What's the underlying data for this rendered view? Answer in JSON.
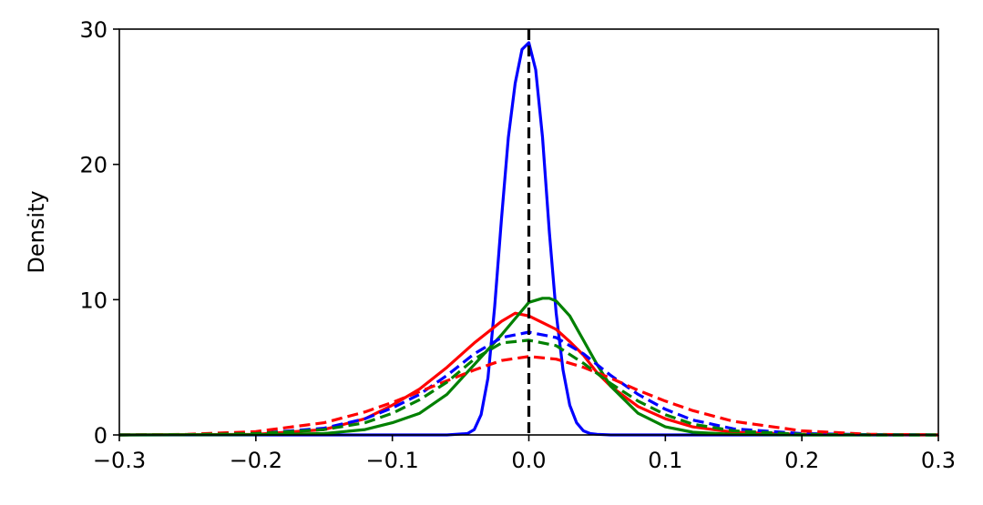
{
  "chart_data": {
    "type": "line",
    "title": "",
    "xlabel": "",
    "ylabel": "Density",
    "xlim": [
      -0.3,
      0.3
    ],
    "ylim": [
      0,
      30
    ],
    "xticks": [
      -0.3,
      -0.2,
      -0.1,
      0.0,
      0.1,
      0.2,
      0.3
    ],
    "xtick_labels": [
      "−0.3",
      "−0.2",
      "−0.1",
      "0.0",
      "0.1",
      "0.2",
      "0.3"
    ],
    "yticks": [
      0,
      10,
      20,
      30
    ],
    "ytick_labels": [
      "0",
      "10",
      "20",
      "30"
    ],
    "grid": false,
    "legend": false,
    "reference_line": {
      "x": 0.0,
      "style": "dashed",
      "color": "#000000"
    },
    "series": [
      {
        "color": "#0000ff",
        "style": "solid",
        "x": [
          -0.3,
          -0.06,
          -0.045,
          -0.04,
          -0.035,
          -0.03,
          -0.025,
          -0.02,
          -0.015,
          -0.01,
          -0.005,
          0,
          0.005,
          0.01,
          0.015,
          0.02,
          0.025,
          0.03,
          0.035,
          0.04,
          0.045,
          0.05,
          0.06,
          0.3
        ],
        "y": [
          0,
          0,
          0.1,
          0.4,
          1.5,
          4.2,
          9.5,
          16,
          22,
          26,
          28.5,
          29,
          27,
          22,
          15,
          9,
          4.8,
          2.2,
          0.9,
          0.3,
          0.1,
          0.05,
          0,
          0
        ]
      },
      {
        "color": "#ff0000",
        "style": "solid",
        "x": [
          -0.3,
          -0.2,
          -0.15,
          -0.12,
          -0.1,
          -0.08,
          -0.06,
          -0.04,
          -0.03,
          -0.02,
          -0.01,
          0,
          0.01,
          0.02,
          0.03,
          0.04,
          0.05,
          0.06,
          0.08,
          0.1,
          0.12,
          0.15,
          0.2,
          0.3
        ],
        "y": [
          0,
          0.05,
          0.4,
          1.2,
          2.2,
          3.4,
          5,
          6.8,
          7.6,
          8.4,
          9,
          8.8,
          8.3,
          7.8,
          6.9,
          5.9,
          4.6,
          3.6,
          2.1,
          1.2,
          0.6,
          0.2,
          0.05,
          0
        ]
      },
      {
        "color": "#008000",
        "style": "solid",
        "x": [
          -0.3,
          -0.2,
          -0.15,
          -0.12,
          -0.1,
          -0.08,
          -0.06,
          -0.04,
          -0.02,
          -0.01,
          0,
          0.01,
          0.015,
          0.02,
          0.03,
          0.04,
          0.05,
          0.06,
          0.08,
          0.1,
          0.12,
          0.15,
          0.2,
          0.3
        ],
        "y": [
          0,
          0.02,
          0.1,
          0.4,
          0.9,
          1.6,
          3,
          5.2,
          7.4,
          8.6,
          9.8,
          10.1,
          10.1,
          9.9,
          8.8,
          7,
          5.2,
          3.6,
          1.6,
          0.6,
          0.2,
          0.05,
          0,
          0
        ]
      },
      {
        "color": "#0000ff",
        "style": "dashed",
        "x": [
          -0.3,
          -0.25,
          -0.2,
          -0.15,
          -0.12,
          -0.1,
          -0.08,
          -0.06,
          -0.04,
          -0.02,
          0,
          0.02,
          0.04,
          0.06,
          0.08,
          0.1,
          0.12,
          0.15,
          0.2,
          0.25,
          0.3
        ],
        "y": [
          0,
          0.02,
          0.1,
          0.5,
          1.2,
          2,
          3,
          4.4,
          6,
          7.2,
          7.6,
          7.2,
          6,
          4.4,
          3,
          1.9,
          1.1,
          0.45,
          0.1,
          0.02,
          0
        ]
      },
      {
        "color": "#ff0000",
        "style": "dashed",
        "x": [
          -0.3,
          -0.25,
          -0.2,
          -0.15,
          -0.12,
          -0.1,
          -0.08,
          -0.06,
          -0.04,
          -0.02,
          0,
          0.02,
          0.04,
          0.06,
          0.08,
          0.1,
          0.12,
          0.15,
          0.2,
          0.25,
          0.3
        ],
        "y": [
          0,
          0.04,
          0.25,
          0.9,
          1.7,
          2.4,
          3.2,
          4,
          4.8,
          5.5,
          5.8,
          5.6,
          5,
          4.2,
          3.3,
          2.5,
          1.8,
          1,
          0.3,
          0.05,
          0
        ]
      },
      {
        "color": "#008000",
        "style": "dashed",
        "x": [
          -0.3,
          -0.25,
          -0.2,
          -0.15,
          -0.12,
          -0.1,
          -0.08,
          -0.06,
          -0.04,
          -0.02,
          0,
          0.02,
          0.04,
          0.06,
          0.08,
          0.1,
          0.12,
          0.15,
          0.2,
          0.25,
          0.3
        ],
        "y": [
          0,
          0.02,
          0.1,
          0.4,
          0.9,
          1.6,
          2.6,
          3.9,
          5.6,
          6.8,
          7,
          6.6,
          5.3,
          3.8,
          2.5,
          1.5,
          0.8,
          0.3,
          0.05,
          0,
          0
        ]
      }
    ]
  }
}
